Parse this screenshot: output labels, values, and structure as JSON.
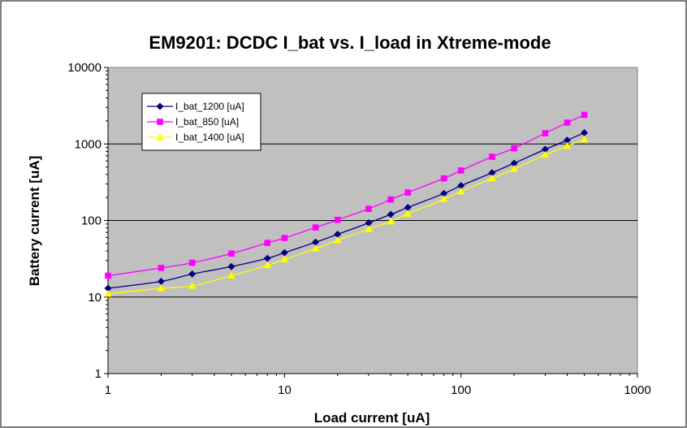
{
  "chart_data": {
    "type": "line",
    "title": "EM9201: DCDC I_bat vs. I_load in Xtreme-mode",
    "xlabel": "Load current [uA]",
    "ylabel": "Battery current [uA]",
    "x_scale": "log",
    "y_scale": "log",
    "xlim": [
      1,
      1000
    ],
    "ylim": [
      1,
      10000
    ],
    "x_ticks": [
      "1",
      "10",
      "100",
      "1000"
    ],
    "y_ticks": [
      "1",
      "10",
      "100",
      "1000",
      "10000"
    ],
    "grid": "horizontal major lines",
    "plot_background": "#c0c0c0",
    "legend_position": "top-left",
    "series": [
      {
        "name": "I_bat_1200 [uA]",
        "color": "#000080",
        "marker": "diamond",
        "x": [
          1,
          2,
          3,
          5,
          8,
          10,
          15,
          20,
          30,
          40,
          50,
          80,
          100,
          150,
          200,
          300,
          400,
          500
        ],
        "y": [
          13,
          16,
          20,
          25,
          32,
          38,
          52,
          66,
          93,
          120,
          148,
          225,
          285,
          420,
          560,
          850,
          1120,
          1400
        ]
      },
      {
        "name": "I_bat_850 [uA]",
        "color": "#ff00ff",
        "marker": "square",
        "x": [
          1,
          2,
          3,
          5,
          8,
          10,
          15,
          20,
          30,
          40,
          50,
          80,
          100,
          150,
          200,
          300,
          400,
          500
        ],
        "y": [
          19,
          24,
          28,
          37,
          51,
          59,
          81,
          102,
          142,
          188,
          232,
          355,
          450,
          680,
          880,
          1380,
          1900,
          2400
        ]
      },
      {
        "name": "I_bat_1400 [uA]",
        "color": "#ffff00",
        "marker": "triangle",
        "x": [
          1,
          2,
          3,
          5,
          8,
          10,
          15,
          20,
          30,
          40,
          50,
          80,
          100,
          150,
          200,
          300,
          400,
          500
        ],
        "y": [
          11,
          13,
          14,
          19,
          26,
          31,
          43,
          55,
          77,
          97,
          122,
          190,
          240,
          355,
          470,
          720,
          940,
          1150
        ]
      }
    ]
  }
}
